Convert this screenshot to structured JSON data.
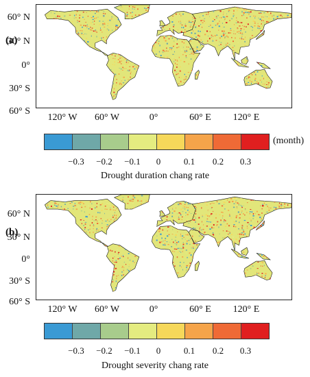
{
  "figure": {
    "panels": [
      {
        "id": "a",
        "label": "(a)",
        "lat_labels": [
          "60° N",
          "30° N",
          "0°",
          "30° S",
          "60° S"
        ],
        "lon_labels": [
          "120° W",
          "60° W",
          "0°",
          "60° E",
          "120° E"
        ],
        "colorbar": {
          "unit": "(month)",
          "tick_labels": [
            "−0.3",
            "−0.2",
            "−0.1",
            "0",
            "0.1",
            "0.2",
            "0.3"
          ],
          "title": "Drought duration chang rate"
        }
      },
      {
        "id": "b",
        "label": "(b)",
        "lat_labels": [
          "60° N",
          "30° N",
          "0°",
          "30° S",
          "60° S"
        ],
        "lon_labels": [
          "120° W",
          "60° W",
          "0°",
          "60° E",
          "120° E"
        ],
        "colorbar": {
          "unit": "",
          "tick_labels": [
            "−0.3",
            "−0.2",
            "−0.1",
            "0",
            "0.1",
            "0.2",
            "0.3"
          ],
          "title": "Drought severity chang rate"
        }
      }
    ],
    "colorbar_colors": [
      "#3a9ad4",
      "#6fa8a8",
      "#a8cc8c",
      "#e4ec80",
      "#f6d85a",
      "#f5a44a",
      "#ef6a36",
      "#e01f1f"
    ],
    "land_base_color": "#e2e67a",
    "ocean_color": "#ffffff"
  }
}
